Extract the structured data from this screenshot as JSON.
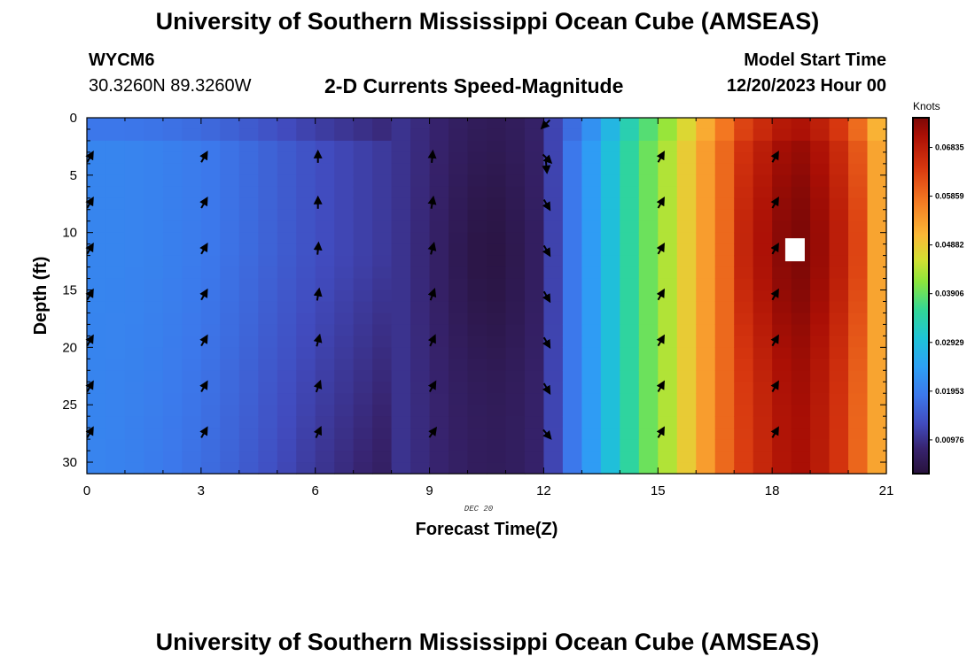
{
  "header": {
    "title": "University of Southern Mississippi Ocean Cube (AMSEAS)",
    "station": "WYCM6",
    "coords": "30.3260N  89.3260W",
    "subtitle": "2-D Currents Speed-Magnitude",
    "model_start_label": "Model Start Time",
    "model_start_value": "12/20/2023 Hour 00"
  },
  "footer": {
    "title": "University of Southern Mississippi Ocean Cube (AMSEAS)"
  },
  "chart_data": {
    "type": "heatmap",
    "title": "2-D Currents Speed-Magnitude",
    "xlabel": "Forecast Time(Z)",
    "ylabel": "Depth (ft)",
    "date_label": "DEC 20",
    "xlim": [
      0,
      21
    ],
    "ylim": [
      31,
      0
    ],
    "x_ticks": [
      0,
      3,
      6,
      9,
      12,
      15,
      18,
      21
    ],
    "y_ticks": [
      0,
      5,
      10,
      15,
      20,
      25,
      30
    ],
    "colorbar": {
      "unit": "Knots",
      "ticks": [
        "0.06835",
        "0.05859",
        "0.04882",
        "0.03906",
        "0.02929",
        "0.01953",
        "0.00976"
      ],
      "tick_values": [
        0.06835,
        0.05859,
        0.04882,
        0.03906,
        0.02929,
        0.01953,
        0.00976
      ],
      "range": [
        0.003,
        0.0743
      ]
    },
    "time_profile": [
      [
        0,
        0.0205
      ],
      [
        1,
        0.0205
      ],
      [
        2,
        0.02
      ],
      [
        3,
        0.019
      ],
      [
        4,
        0.0175
      ],
      [
        5,
        0.0155
      ],
      [
        6,
        0.0135
      ],
      [
        7,
        0.012
      ],
      [
        8,
        0.0105
      ],
      [
        9,
        0.0085
      ],
      [
        10,
        0.0065
      ],
      [
        11,
        0.006
      ],
      [
        12,
        0.008
      ],
      [
        12.5,
        0.0165
      ],
      [
        13,
        0.021
      ],
      [
        13.5,
        0.0265
      ],
      [
        14,
        0.0325
      ],
      [
        14.5,
        0.0375
      ],
      [
        15,
        0.0415
      ],
      [
        15.5,
        0.046
      ],
      [
        16,
        0.051
      ],
      [
        16.5,
        0.0565
      ],
      [
        17,
        0.062
      ],
      [
        18,
        0.0685
      ],
      [
        18.5,
        0.071
      ],
      [
        19,
        0.0705
      ],
      [
        20,
        0.063
      ],
      [
        20.5,
        0.056
      ],
      [
        21,
        0.05
      ]
    ],
    "arrows": {
      "times": [
        0,
        3,
        6,
        9,
        12,
        15,
        18
      ],
      "depths": [
        3.5,
        7.5,
        11.5,
        15.5,
        19.5,
        23.5,
        27.5
      ],
      "directions_deg": [
        [
          30,
          30,
          0,
          5,
          135,
          30,
          30
        ],
        [
          30,
          30,
          0,
          10,
          150,
          30,
          30
        ],
        [
          30,
          30,
          5,
          15,
          150,
          30,
          30
        ],
        [
          30,
          30,
          10,
          20,
          150,
          30,
          30
        ],
        [
          30,
          30,
          15,
          25,
          150,
          30,
          30
        ],
        [
          30,
          30,
          20,
          30,
          150,
          30,
          30
        ],
        [
          30,
          30,
          25,
          35,
          140,
          30,
          30
        ]
      ],
      "top_arrow": {
        "time": 12,
        "depth": 0.5,
        "direction_deg": 225
      },
      "second_arrow": {
        "time": 12,
        "depth": 4.2,
        "direction_deg": 175
      }
    },
    "missing_cell": {
      "time": 18.6,
      "depth": 11.5
    }
  }
}
